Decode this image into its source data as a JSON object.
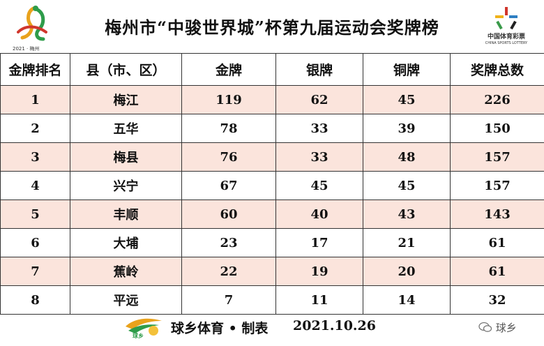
{
  "header": {
    "title": "梅州市“中骏世界城”杯第九届运动会奖牌榜",
    "left_logo_caption": "2021 · 梅州",
    "right_logo_text_cn": "中国体育彩票",
    "right_logo_text_en": "CHINA SPORTS LOTTERY"
  },
  "table": {
    "columns": [
      "金牌排名",
      "县（市、区）",
      "金牌",
      "银牌",
      "铜牌",
      "奖牌总数"
    ],
    "rows": [
      [
        "1",
        "梅江",
        "119",
        "62",
        "45",
        "226"
      ],
      [
        "2",
        "五华",
        "78",
        "33",
        "39",
        "150"
      ],
      [
        "3",
        "梅县",
        "76",
        "33",
        "48",
        "157"
      ],
      [
        "4",
        "兴宁",
        "67",
        "45",
        "45",
        "157"
      ],
      [
        "5",
        "丰顺",
        "60",
        "40",
        "43",
        "143"
      ],
      [
        "6",
        "大埔",
        "23",
        "17",
        "21",
        "61"
      ],
      [
        "7",
        "蕉岭",
        "22",
        "19",
        "20",
        "61"
      ],
      [
        "8",
        "平远",
        "7",
        "11",
        "14",
        "32"
      ]
    ]
  },
  "footer": {
    "logo_label": "球乡",
    "credit": "球乡体育 • 制表",
    "date": "2021.10.26",
    "watermark": "球乡"
  },
  "colors": {
    "row_shade": "#fbe4dc",
    "border": "#333333"
  }
}
